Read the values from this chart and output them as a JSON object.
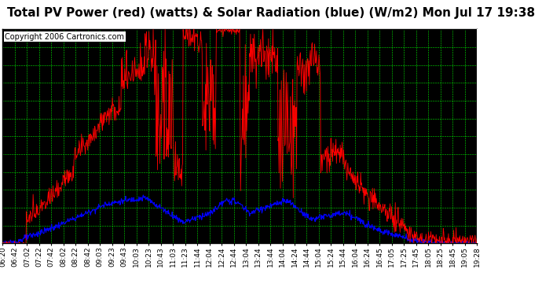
{
  "title": "Total PV Power (red) (watts) & Solar Radiation (blue) (W/m2) Mon Jul 17 19:38",
  "copyright": "Copyright 2006 Cartronics.com",
  "plot_bg_color": "#000000",
  "title_bg_color": "#ffffff",
  "grid_color": "#00ff00",
  "y_ticks": [
    25.0,
    317.1,
    609.3,
    901.4,
    1193.6,
    1485.7,
    1777.9,
    2070.0,
    2362.1,
    2654.3,
    2946.4,
    3238.6,
    3530.7
  ],
  "y_min": 25.0,
  "y_max": 3530.7,
  "x_labels": [
    "06:20",
    "06:42",
    "07:02",
    "07:22",
    "07:42",
    "08:02",
    "08:22",
    "08:42",
    "09:03",
    "09:23",
    "09:43",
    "10:03",
    "10:23",
    "10:43",
    "11:03",
    "11:23",
    "11:44",
    "12:04",
    "12:24",
    "12:44",
    "13:04",
    "13:24",
    "13:44",
    "14:04",
    "14:24",
    "14:44",
    "15:04",
    "15:24",
    "15:44",
    "16:04",
    "16:24",
    "16:45",
    "17:05",
    "17:25",
    "17:45",
    "18:05",
    "18:25",
    "18:45",
    "19:05",
    "19:28"
  ],
  "title_fontsize": 11,
  "copyright_fontsize": 7,
  "tick_fontsize": 6.5,
  "line_red": "#ff0000",
  "line_blue": "#0000ff"
}
